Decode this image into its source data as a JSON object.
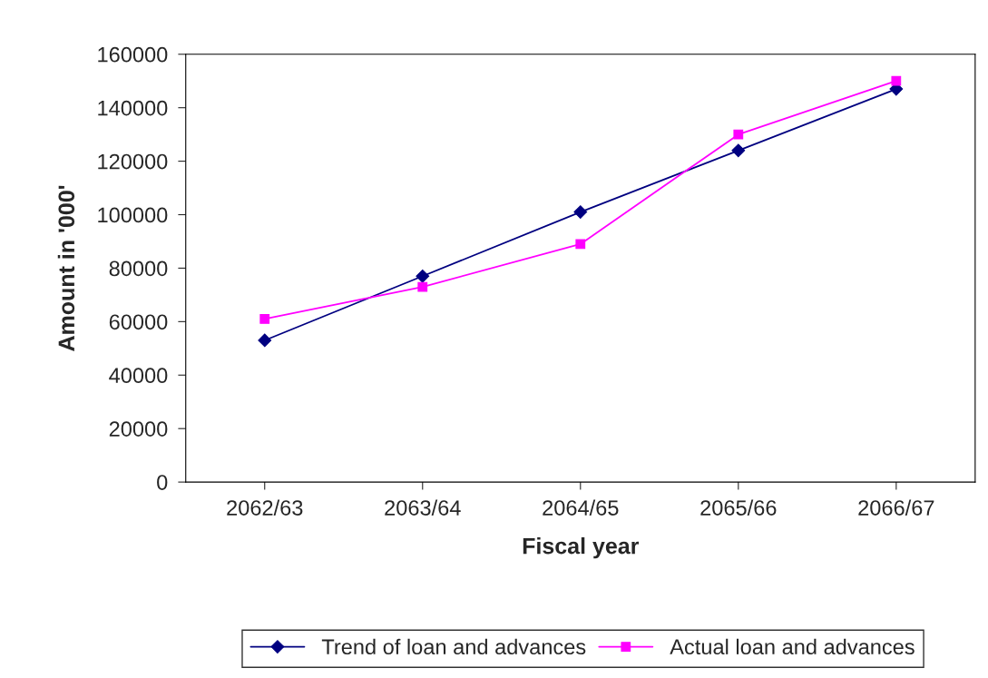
{
  "chart_data": {
    "type": "line",
    "xlabel": "Fiscal year",
    "ylabel": "Amount in '000'",
    "categories": [
      "2062/63",
      "2063/64",
      "2064/65",
      "2065/66",
      "2066/67"
    ],
    "series": [
      {
        "name": "Trend of loan and advances",
        "color": "#000080",
        "marker": "diamond",
        "values": [
          53000,
          77000,
          101000,
          124000,
          147000
        ]
      },
      {
        "name": "Actual loan and advances",
        "color": "#ff00ff",
        "marker": "square",
        "values": [
          61000,
          73000,
          89000,
          130000,
          150000
        ]
      }
    ],
    "ylim": [
      0,
      160000
    ],
    "yticks": [
      0,
      20000,
      40000,
      60000,
      80000,
      100000,
      120000,
      140000,
      160000
    ],
    "grid": false,
    "legend": "bottom",
    "line_style": "solid"
  }
}
